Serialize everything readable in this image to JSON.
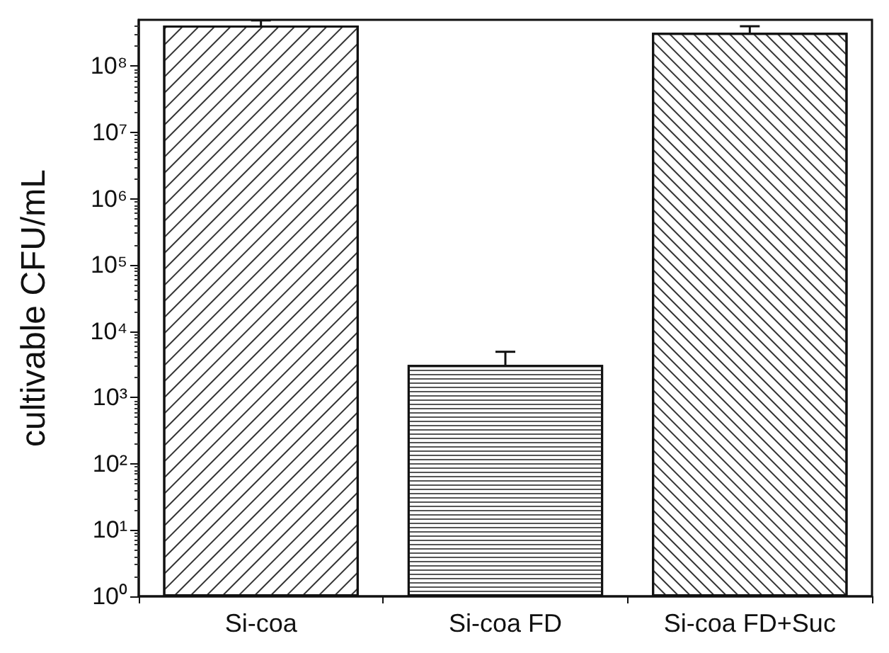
{
  "chart_data": {
    "type": "bar",
    "ylabel": "cultivable CFU/mL",
    "categories": [
      "Si-coa",
      "Si-coa FD",
      "Si-coa FD+Suc"
    ],
    "values": [
      410000000,
      3100,
      320000000
    ],
    "errors": [
      [
        410000000,
        490000000
      ],
      [
        3100,
        4900
      ],
      [
        320000000,
        400000000
      ]
    ],
    "colors": [
      "#ffffff",
      "#ffffff",
      "#ffffff"
    ],
    "log": true,
    "ylim": [
      1,
      500000000
    ],
    "yticks": [
      {
        "value": 1,
        "label": "10⁰"
      },
      {
        "value": 10,
        "label": "10¹"
      },
      {
        "value": 100,
        "label": "10²"
      },
      {
        "value": 1000,
        "label": "10³"
      },
      {
        "value": 10000,
        "label": "10⁴"
      },
      {
        "value": 100000,
        "label": "10⁵"
      },
      {
        "value": 1000000,
        "label": "10⁶"
      },
      {
        "value": 10000000,
        "label": "10⁷"
      },
      {
        "value": 100000000,
        "label": "10⁸"
      }
    ],
    "grid": false
  }
}
